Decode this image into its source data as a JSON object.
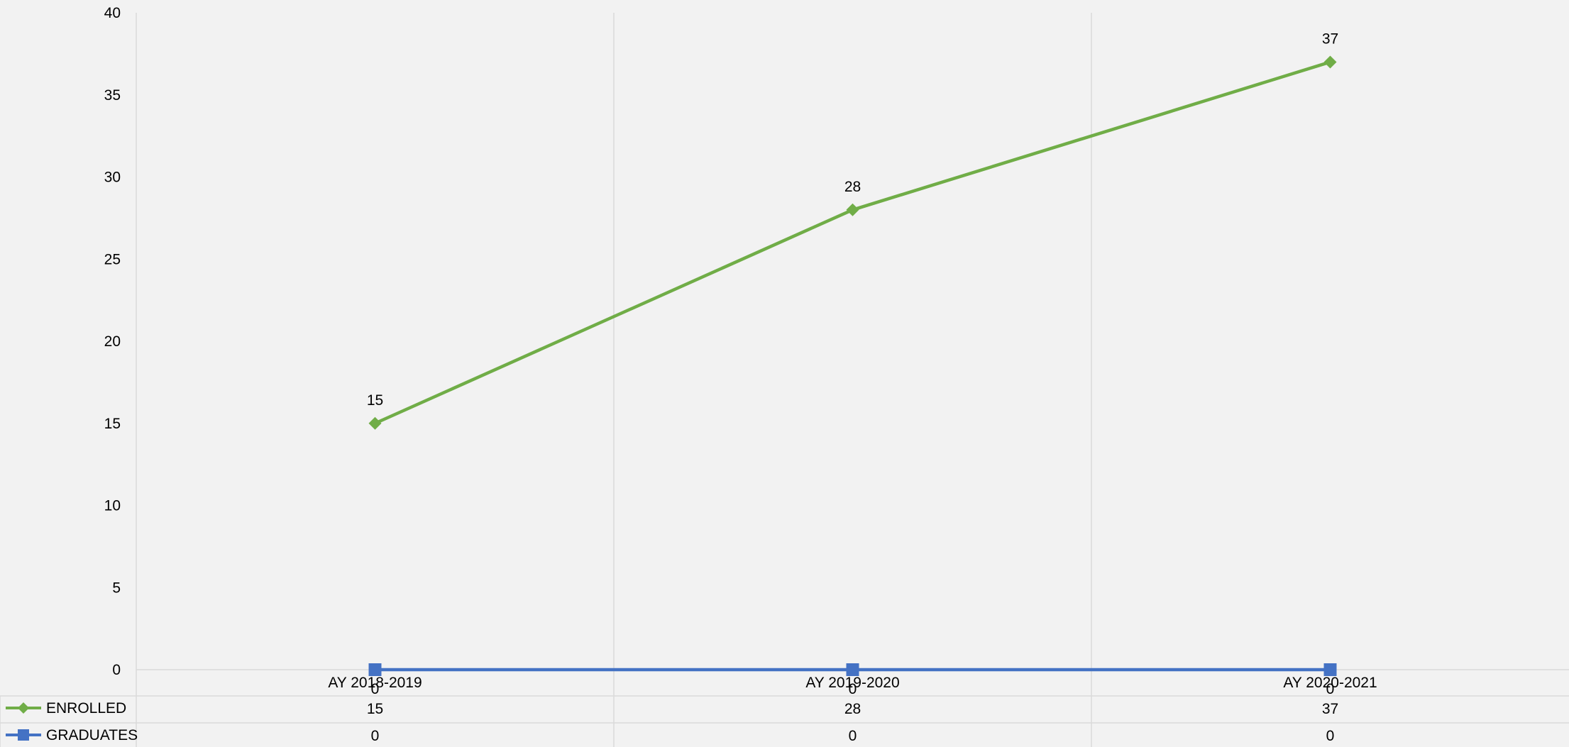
{
  "chart_data": {
    "type": "line",
    "categories": [
      "AY 2018-2019",
      "AY 2019-2020",
      "AY 2020-2021"
    ],
    "series": [
      {
        "name": "ENROLLED",
        "values": [
          15,
          28,
          37
        ],
        "color": "#70ad47",
        "marker": "diamond"
      },
      {
        "name": "GRADUATES",
        "values": [
          0,
          0,
          0
        ],
        "color": "#4472c4",
        "marker": "square"
      }
    ],
    "ylim": [
      0,
      40
    ],
    "yticks": [
      "0",
      "5",
      "10",
      "15",
      "20",
      "25",
      "30",
      "35",
      "40"
    ],
    "data_labels": {
      "ENROLLED": [
        "15",
        "28",
        "37"
      ],
      "GRADUATES": [
        "0",
        "0",
        "0"
      ]
    },
    "data_table": {
      "rows": [
        {
          "name": "ENROLLED",
          "values": [
            "15",
            "28",
            "37"
          ]
        },
        {
          "name": "GRADUATES",
          "values": [
            "0",
            "0",
            "0"
          ]
        }
      ]
    },
    "grid": "vertical",
    "legend": "data-table"
  }
}
